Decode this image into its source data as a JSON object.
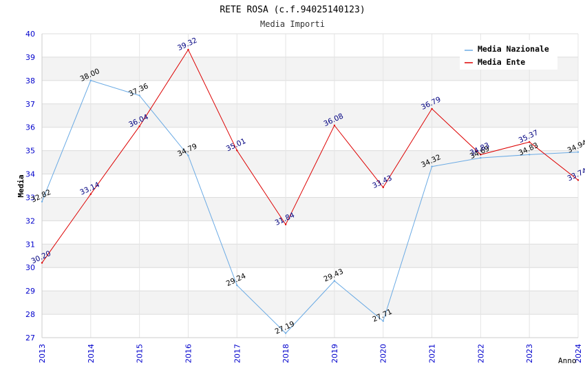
{
  "chart_data": {
    "type": "line",
    "title": "RETE ROSA (c.f.94025140123)",
    "subtitle": "Media Importi",
    "xlabel": "Anno",
    "ylabel": "Media",
    "x": [
      "2013",
      "2014",
      "2015",
      "2016",
      "2017",
      "2018",
      "2019",
      "2020",
      "2021",
      "2022",
      "2023",
      "2024"
    ],
    "ylim": [
      27,
      40
    ],
    "yticks": [
      "27",
      "28",
      "29",
      "30",
      "31",
      "32",
      "33",
      "34",
      "35",
      "36",
      "37",
      "38",
      "39",
      "40"
    ],
    "grid": true,
    "legend_position": "top-right",
    "series": [
      {
        "name": "Media Nazionale",
        "color": "#6aaae4",
        "label_color": "#000000",
        "values": [
          32.82,
          38.0,
          37.36,
          34.79,
          29.24,
          27.19,
          29.43,
          27.71,
          34.32,
          34.69,
          34.83,
          34.94
        ],
        "labels": [
          "32.82",
          "38.00",
          "37.36",
          "34.79",
          "29.24",
          "27.19",
          "29.43",
          "27.71",
          "34.32",
          "34.69",
          "34.83",
          "34.94"
        ]
      },
      {
        "name": "Media Ente",
        "color": "#dd0000",
        "label_color": "#000080",
        "values": [
          30.2,
          33.14,
          36.04,
          39.32,
          35.01,
          31.84,
          36.08,
          33.43,
          36.79,
          34.83,
          35.37,
          33.74
        ],
        "labels": [
          "30.20",
          "33.14",
          "36.04",
          "39.32",
          "35.01",
          "31.84",
          "36.08",
          "33.43",
          "36.79",
          "34.83",
          "35.37",
          "33.74"
        ]
      }
    ]
  }
}
